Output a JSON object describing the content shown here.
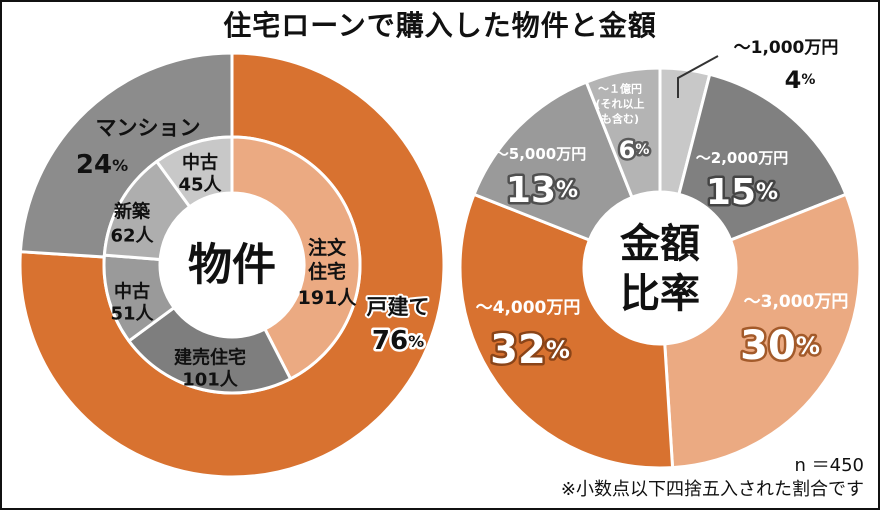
{
  "title": "住宅ローンで購入した物件と金額",
  "chart_data": [
    {
      "type": "pie",
      "variant": "nested-donut",
      "center_label": "物件",
      "outer": [
        {
          "label": "戸建て",
          "value": 76,
          "value_text": "76%",
          "color": "#D87230"
        },
        {
          "label": "マンション",
          "value": 24,
          "value_text": "24%",
          "color": "#8C8C8C"
        }
      ],
      "inner": [
        {
          "label": "注文住宅",
          "count": 191,
          "count_text": "191人",
          "color": "#EBAA82"
        },
        {
          "label": "建売住宅",
          "count": 101,
          "count_text": "101人",
          "color": "#7E7E7E"
        },
        {
          "label": "中古",
          "count": 51,
          "count_text": "51人",
          "color": "#9A9A9A"
        },
        {
          "label": "新築",
          "count": 62,
          "count_text": "62人",
          "color": "#AEAEAE"
        },
        {
          "label": "中古",
          "count": 45,
          "count_text": "45人",
          "color": "#C8C8C8"
        }
      ]
    },
    {
      "type": "pie",
      "variant": "donut",
      "center_label": "金額比率",
      "slices": [
        {
          "label": "～1,000万円",
          "value": 4,
          "value_text": "4%",
          "color": "#C8C8C8"
        },
        {
          "label": "～2,000万円",
          "value": 15,
          "value_text": "15%",
          "color": "#808080"
        },
        {
          "label": "～3,000万円",
          "value": 30,
          "value_text": "30%",
          "color": "#EBAA82"
        },
        {
          "label": "～4,000万円",
          "value": 32,
          "value_text": "32%",
          "color": "#D87230"
        },
        {
          "label": "～5,000万円",
          "value": 13,
          "value_text": "13%",
          "color": "#9A9A9A"
        },
        {
          "label": "～１億円",
          "sublabel1": "(それ以上",
          "sublabel2": "も含む)",
          "value": 6,
          "value_text": "6%",
          "color": "#B4B4B4"
        }
      ]
    }
  ],
  "footnote": {
    "n": "n ＝450",
    "note": "※小数点以下四捨五入された割合です"
  }
}
